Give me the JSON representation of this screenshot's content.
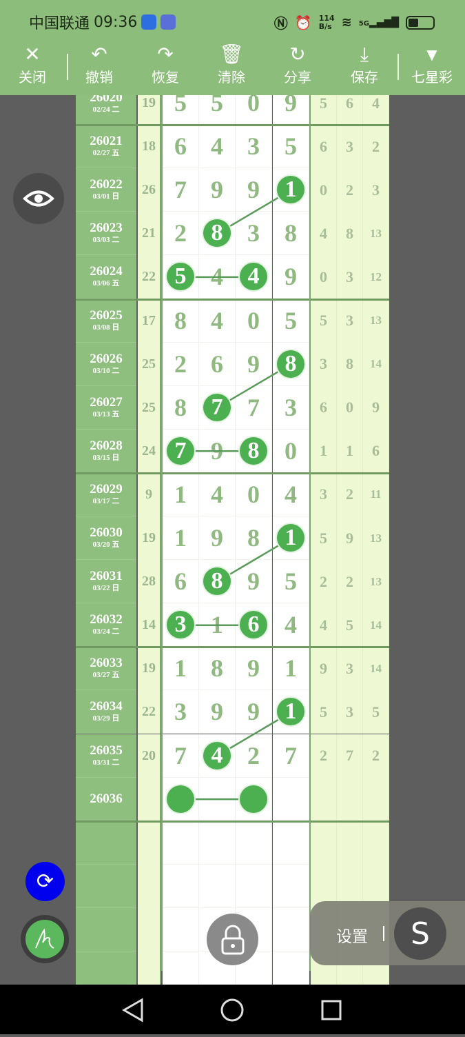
{
  "status": {
    "carrier": "中国联通",
    "time": "09:36",
    "speed_top": "114",
    "speed_bottom": "B/s",
    "network": "5G"
  },
  "toolbar": [
    {
      "label": "关闭",
      "icon": "close-icon",
      "glyph": "✕"
    },
    {
      "label": "撤销",
      "icon": "undo-icon",
      "glyph": "↶"
    },
    {
      "label": "恢复",
      "icon": "redo-icon",
      "glyph": "↷"
    },
    {
      "label": "清除",
      "icon": "trash-icon",
      "glyph": "🗑"
    },
    {
      "label": "分享",
      "icon": "share-icon",
      "glyph": "↻"
    },
    {
      "label": "保存",
      "icon": "download-icon",
      "glyph": "⤓"
    },
    {
      "label": "七星彩",
      "icon": "dropdown-triangle-icon",
      "glyph": "▼"
    }
  ],
  "colors": {
    "accent": "#4caf50",
    "toolbar": "#8cbd7a",
    "issue_col": "#8fbf7e",
    "side_col": "#eef8d2",
    "refresh": "#0000ee"
  },
  "rows": [
    {
      "issue": "26020",
      "date": "02/24 二",
      "sum": "19",
      "nums": [
        "5",
        "5",
        "0",
        "9"
      ],
      "right": [
        "5",
        "6",
        "4"
      ],
      "hl": []
    },
    {
      "issue": "26021",
      "date": "02/27 五",
      "sum": "18",
      "nums": [
        "6",
        "4",
        "3",
        "5"
      ],
      "right": [
        "6",
        "3",
        "2"
      ],
      "hl": []
    },
    {
      "issue": "26022",
      "date": "03/01 日",
      "sum": "26",
      "nums": [
        "7",
        "9",
        "9",
        "1"
      ],
      "right": [
        "0",
        "2",
        "3"
      ],
      "hl": [
        3
      ]
    },
    {
      "issue": "26023",
      "date": "03/03 二",
      "sum": "21",
      "nums": [
        "2",
        "8",
        "3",
        "8"
      ],
      "right": [
        "4",
        "8",
        "13"
      ],
      "hl": [
        1
      ]
    },
    {
      "issue": "26024",
      "date": "03/06 五",
      "sum": "22",
      "nums": [
        "5",
        "4",
        "4",
        "9"
      ],
      "right": [
        "0",
        "3",
        "12"
      ],
      "hl": [
        0,
        2
      ]
    },
    {
      "issue": "26025",
      "date": "03/08 日",
      "sum": "17",
      "nums": [
        "8",
        "4",
        "0",
        "5"
      ],
      "right": [
        "5",
        "3",
        "13"
      ],
      "hl": []
    },
    {
      "issue": "26026",
      "date": "03/10 二",
      "sum": "25",
      "nums": [
        "2",
        "6",
        "9",
        "8"
      ],
      "right": [
        "3",
        "8",
        "14"
      ],
      "hl": [
        3
      ]
    },
    {
      "issue": "26027",
      "date": "03/13 五",
      "sum": "25",
      "nums": [
        "8",
        "7",
        "7",
        "3"
      ],
      "right": [
        "6",
        "0",
        "9"
      ],
      "hl": [
        1
      ]
    },
    {
      "issue": "26028",
      "date": "03/15 日",
      "sum": "24",
      "nums": [
        "7",
        "9",
        "8",
        "0"
      ],
      "right": [
        "1",
        "1",
        "6"
      ],
      "hl": [
        0,
        2
      ]
    },
    {
      "issue": "26029",
      "date": "03/17 二",
      "sum": "9",
      "nums": [
        "1",
        "4",
        "0",
        "4"
      ],
      "right": [
        "3",
        "2",
        "11"
      ],
      "hl": []
    },
    {
      "issue": "26030",
      "date": "03/20 五",
      "sum": "19",
      "nums": [
        "1",
        "9",
        "8",
        "1"
      ],
      "right": [
        "5",
        "9",
        "13"
      ],
      "hl": [
        3
      ]
    },
    {
      "issue": "26031",
      "date": "03/22 日",
      "sum": "28",
      "nums": [
        "6",
        "8",
        "9",
        "5"
      ],
      "right": [
        "2",
        "2",
        "13"
      ],
      "hl": [
        1
      ]
    },
    {
      "issue": "26032",
      "date": "03/24 二",
      "sum": "14",
      "nums": [
        "3",
        "1",
        "6",
        "4"
      ],
      "right": [
        "4",
        "5",
        "14"
      ],
      "hl": [
        0,
        2
      ]
    },
    {
      "issue": "26033",
      "date": "03/27 五",
      "sum": "19",
      "nums": [
        "1",
        "8",
        "9",
        "1"
      ],
      "right": [
        "9",
        "3",
        "14"
      ],
      "hl": []
    },
    {
      "issue": "26034",
      "date": "03/29 日",
      "sum": "22",
      "nums": [
        "3",
        "9",
        "9",
        "1"
      ],
      "right": [
        "5",
        "3",
        "5"
      ],
      "hl": [
        3
      ]
    },
    {
      "issue": "26035",
      "date": "03/31 二",
      "sum": "20",
      "nums": [
        "7",
        "4",
        "2",
        "7"
      ],
      "right": [
        "2",
        "7",
        "2"
      ],
      "hl": [
        1
      ]
    },
    {
      "issue": "26036",
      "date": "",
      "sum": "",
      "nums": [
        "",
        "",
        "",
        ""
      ],
      "right": [
        "",
        "",
        ""
      ],
      "hl": [
        0,
        2
      ]
    }
  ],
  "links": [
    [
      [
        2,
        3
      ],
      [
        3,
        1
      ]
    ],
    [
      [
        4,
        0
      ],
      [
        4,
        2
      ]
    ],
    [
      [
        6,
        3
      ],
      [
        7,
        1
      ]
    ],
    [
      [
        8,
        0
      ],
      [
        8,
        2
      ]
    ],
    [
      [
        10,
        3
      ],
      [
        11,
        1
      ]
    ],
    [
      [
        12,
        0
      ],
      [
        12,
        2
      ]
    ],
    [
      [
        14,
        3
      ],
      [
        15,
        1
      ]
    ],
    [
      [
        16,
        0
      ],
      [
        16,
        2
      ]
    ]
  ],
  "settings": {
    "label": "设置"
  }
}
